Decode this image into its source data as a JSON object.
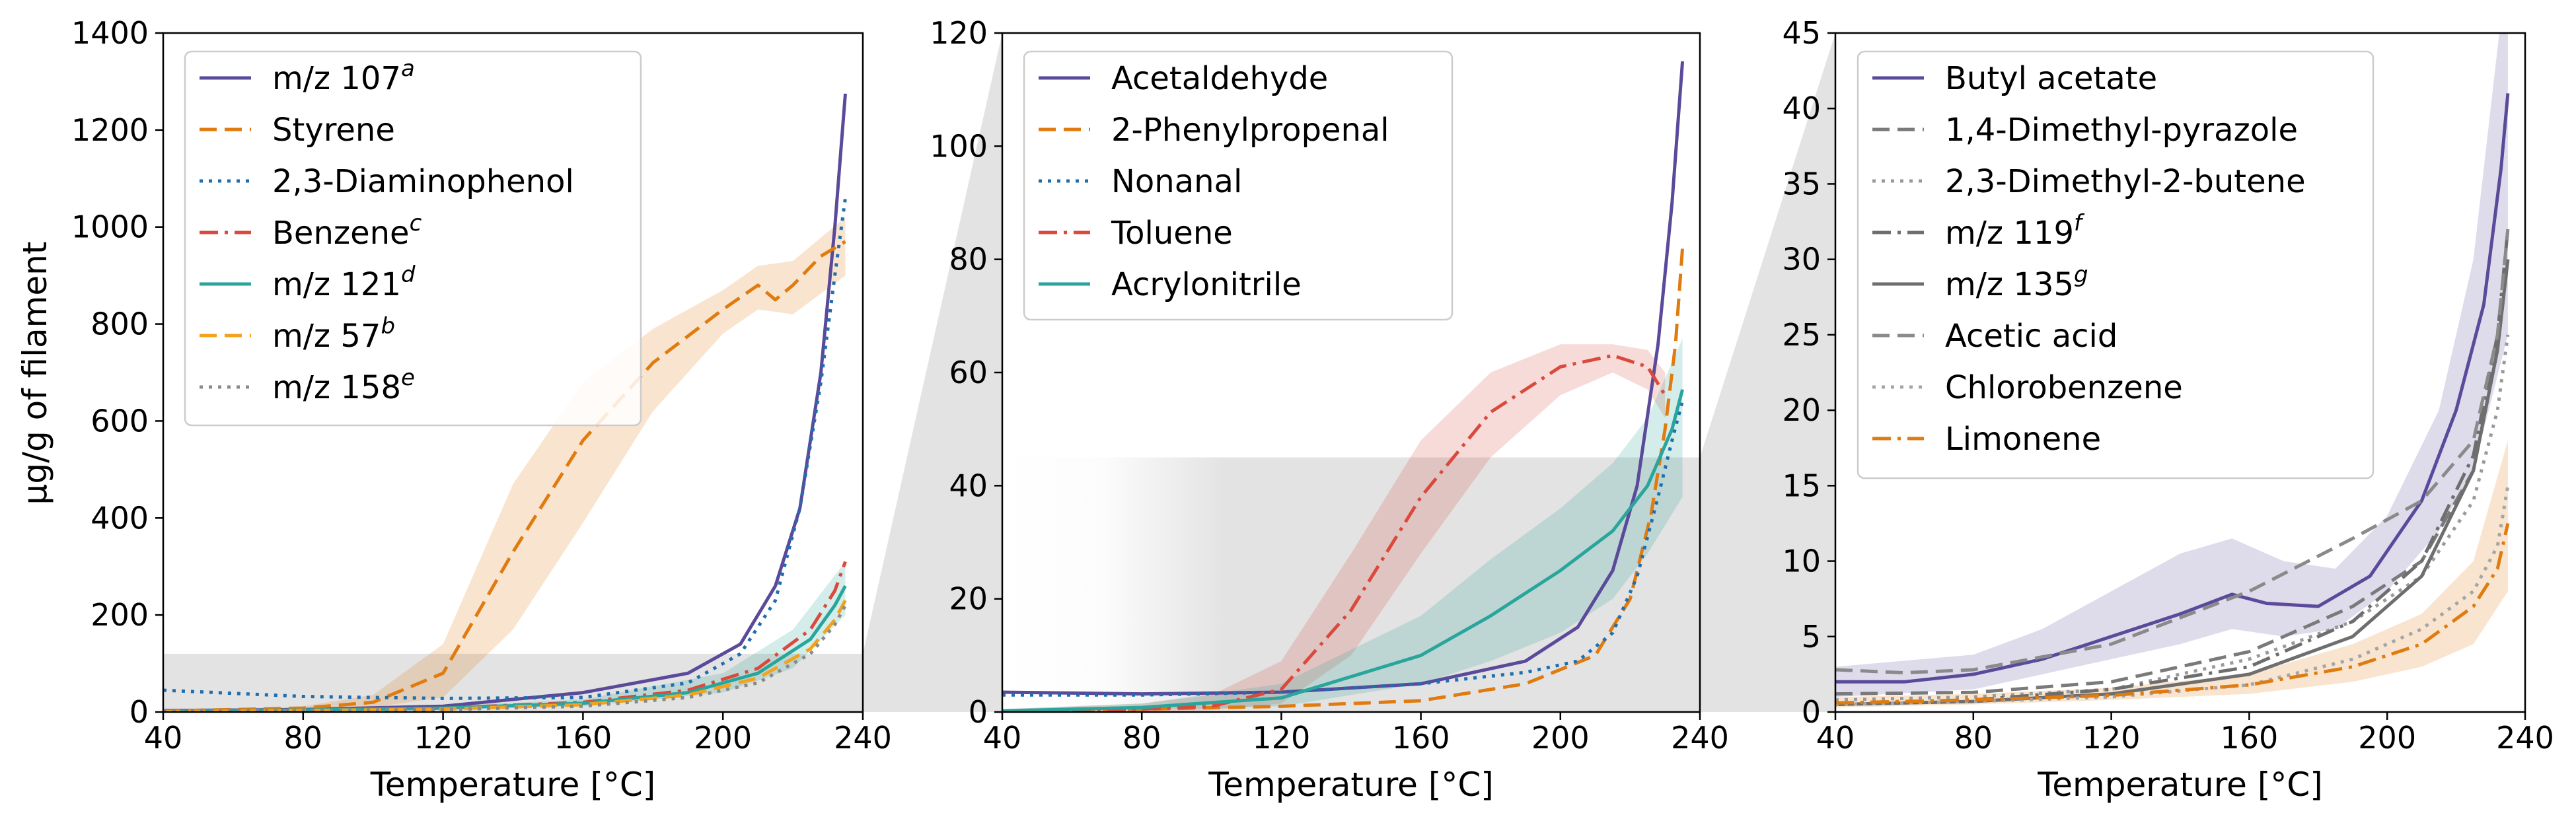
{
  "figure": {
    "ylabel": "µg/g of filament"
  },
  "chart_data": [
    {
      "type": "line",
      "xlabel": "Temperature [°C]",
      "ylabel": "µg/g of filament",
      "xlim": [
        40,
        240
      ],
      "ylim": [
        0,
        1400
      ],
      "xticks": [
        40,
        80,
        120,
        160,
        200,
        240
      ],
      "yticks": [
        0,
        200,
        400,
        600,
        800,
        1000,
        1200,
        1400
      ],
      "zoom_box_ymax": 120,
      "series": [
        {
          "name": "m/z 107",
          "sup": "a",
          "color": "#5b4a9a",
          "dash": "solid",
          "x": [
            40,
            80,
            120,
            160,
            190,
            205,
            215,
            222,
            228,
            232,
            235
          ],
          "y": [
            3,
            5,
            12,
            40,
            80,
            140,
            260,
            420,
            700,
            1000,
            1275
          ]
        },
        {
          "name": "Styrene",
          "color": "#e07b10",
          "dash": "dashed",
          "x": [
            40,
            80,
            100,
            120,
            140,
            160,
            180,
            200,
            210,
            215,
            220,
            228,
            235
          ],
          "y": [
            2,
            8,
            20,
            80,
            330,
            560,
            720,
            830,
            880,
            850,
            880,
            940,
            970
          ],
          "band": [
            [
              40,
              2,
              2
            ],
            [
              80,
              4,
              12
            ],
            [
              100,
              10,
              35
            ],
            [
              120,
              30,
              140
            ],
            [
              140,
              170,
              470
            ],
            [
              160,
              390,
              680
            ],
            [
              180,
              620,
              790
            ],
            [
              200,
              780,
              870
            ],
            [
              210,
              830,
              920
            ],
            [
              220,
              820,
              930
            ],
            [
              235,
              900,
              1020
            ]
          ]
        },
        {
          "name": "2,3-Diaminophenol",
          "color": "#1f6fb0",
          "dash": "dotted",
          "x": [
            40,
            80,
            120,
            160,
            190,
            205,
            215,
            222,
            228,
            232,
            235
          ],
          "y": [
            45,
            32,
            28,
            30,
            60,
            120,
            230,
            420,
            680,
            900,
            1060
          ]
        },
        {
          "name": "Benzene",
          "sup": "c",
          "color": "#d94a3d",
          "dash": "dashdot",
          "x": [
            40,
            80,
            120,
            160,
            190,
            210,
            225,
            232,
            235
          ],
          "y": [
            2,
            4,
            8,
            20,
            45,
            90,
            170,
            250,
            310
          ]
        },
        {
          "name": "m/z 121",
          "sup": "d",
          "color": "#2aa59c",
          "dash": "solid",
          "x": [
            40,
            80,
            120,
            160,
            190,
            210,
            225,
            232,
            235
          ],
          "y": [
            2,
            4,
            8,
            18,
            40,
            80,
            150,
            220,
            260
          ],
          "band": [
            [
              40,
              1,
              3
            ],
            [
              120,
              5,
              12
            ],
            [
              160,
              12,
              26
            ],
            [
              200,
              40,
              80
            ],
            [
              220,
              90,
              170
            ],
            [
              235,
              200,
              310
            ]
          ]
        },
        {
          "name": "m/z 57",
          "sup": "b",
          "color": "#f2a31b",
          "dash": "dashed",
          "x": [
            40,
            80,
            120,
            160,
            190,
            210,
            225,
            232,
            235
          ],
          "y": [
            1,
            3,
            6,
            15,
            35,
            70,
            130,
            190,
            230
          ]
        },
        {
          "name": "m/z 158",
          "sup": "e",
          "color": "#8a8a8a",
          "dash": "dotted",
          "x": [
            40,
            80,
            120,
            160,
            190,
            210,
            225,
            232,
            235
          ],
          "y": [
            1,
            3,
            5,
            12,
            30,
            60,
            120,
            180,
            220
          ]
        }
      ]
    },
    {
      "type": "line",
      "xlabel": "Temperature [°C]",
      "xlim": [
        40,
        240
      ],
      "ylim": [
        0,
        120
      ],
      "xticks": [
        40,
        80,
        120,
        160,
        200,
        240
      ],
      "yticks": [
        0,
        20,
        40,
        60,
        80,
        100,
        120
      ],
      "zoom_box_ymax": 45,
      "series": [
        {
          "name": "Acetaldehyde",
          "color": "#5b4a9a",
          "dash": "solid",
          "x": [
            40,
            80,
            120,
            160,
            190,
            205,
            215,
            222,
            228,
            232,
            235
          ],
          "y": [
            3.5,
            3.2,
            3.5,
            5,
            9,
            15,
            25,
            40,
            65,
            90,
            115
          ]
        },
        {
          "name": "2-Phenylpropenal",
          "color": "#e07b10",
          "dash": "dashed",
          "x": [
            40,
            80,
            120,
            160,
            190,
            210,
            220,
            226,
            230,
            233,
            235
          ],
          "y": [
            0,
            0.5,
            1,
            2,
            5,
            10,
            20,
            35,
            50,
            65,
            82
          ]
        },
        {
          "name": "Nonanal",
          "color": "#1f6fb0",
          "dash": "dotted",
          "x": [
            40,
            80,
            120,
            160,
            190,
            205,
            215,
            222,
            228,
            232,
            235
          ],
          "y": [
            3,
            3,
            3.5,
            5,
            7,
            9,
            14,
            24,
            38,
            48,
            55
          ]
        },
        {
          "name": "Toluene",
          "color": "#d94a3d",
          "dash": "dashdot",
          "x": [
            40,
            80,
            100,
            120,
            140,
            160,
            180,
            200,
            215,
            225,
            230
          ],
          "y": [
            0,
            0.5,
            1,
            4,
            18,
            38,
            53,
            61,
            63,
            61,
            56
          ],
          "band": [
            [
              40,
              0,
              0.5
            ],
            [
              80,
              0,
              1.5
            ],
            [
              100,
              0.3,
              3
            ],
            [
              120,
              1.5,
              9
            ],
            [
              140,
              10,
              28
            ],
            [
              160,
              28,
              48
            ],
            [
              180,
              45,
              60
            ],
            [
              200,
              56,
              65
            ],
            [
              215,
              60,
              65
            ],
            [
              225,
              57,
              64
            ],
            [
              230,
              52,
              60
            ]
          ]
        },
        {
          "name": "Acrylonitrile",
          "color": "#2aa59c",
          "dash": "solid",
          "x": [
            40,
            80,
            120,
            160,
            180,
            200,
            215,
            225,
            232,
            235
          ],
          "y": [
            0.2,
            0.8,
            2.5,
            10,
            17,
            25,
            32,
            40,
            50,
            57
          ],
          "band": [
            [
              40,
              0,
              0.5
            ],
            [
              80,
              0.3,
              1.5
            ],
            [
              120,
              1,
              5
            ],
            [
              160,
              5,
              17
            ],
            [
              180,
              9,
              27
            ],
            [
              200,
              14,
              36
            ],
            [
              215,
              20,
              44
            ],
            [
              225,
              28,
              52
            ],
            [
              235,
              38,
              66
            ]
          ]
        }
      ]
    },
    {
      "type": "line",
      "xlabel": "Temperature [°C]",
      "xlim": [
        40,
        240
      ],
      "ylim": [
        0,
        45
      ],
      "xticks": [
        40,
        80,
        120,
        160,
        200,
        240
      ],
      "yticks": [
        0,
        5,
        10,
        15,
        20,
        25,
        30,
        35,
        40,
        45
      ],
      "series": [
        {
          "name": "Butyl acetate",
          "color": "#5b4a9a",
          "dash": "solid",
          "x": [
            40,
            60,
            80,
            100,
            120,
            140,
            155,
            165,
            180,
            195,
            210,
            220,
            228,
            233,
            235
          ],
          "y": [
            2,
            2,
            2.5,
            3.5,
            5,
            6.5,
            7.8,
            7.2,
            7,
            9,
            14,
            20,
            27,
            36,
            41
          ],
          "band": [
            [
              40,
              1,
              3
            ],
            [
              80,
              1.5,
              3.8
            ],
            [
              100,
              2.5,
              5.5
            ],
            [
              120,
              3.5,
              8
            ],
            [
              140,
              4.5,
              10.5
            ],
            [
              155,
              5.5,
              11.5
            ],
            [
              170,
              5,
              10
            ],
            [
              185,
              5.5,
              9.5
            ],
            [
              200,
              8,
              13
            ],
            [
              215,
              12,
              20
            ],
            [
              225,
              16,
              30
            ],
            [
              235,
              25,
              50
            ]
          ]
        },
        {
          "name": "1,4-Dimethyl-pyrazole",
          "color": "#7a7a7a",
          "dash": "dashed",
          "x": [
            40,
            80,
            120,
            160,
            190,
            210,
            225,
            232,
            235
          ],
          "y": [
            1.2,
            1.3,
            2,
            4,
            7,
            10,
            16,
            24,
            30
          ]
        },
        {
          "name": "2,3-Dimethyl-2-butene",
          "color": "#9a9a9a",
          "dash": "dotted",
          "x": [
            40,
            80,
            120,
            160,
            190,
            210,
            225,
            232,
            235
          ],
          "y": [
            0.8,
            1,
            1.5,
            3.5,
            6,
            9,
            14,
            20,
            25
          ]
        },
        {
          "name": "m/z 119",
          "sup": "f",
          "color": "#6e6e6e",
          "dash": "dashdot",
          "x": [
            40,
            80,
            120,
            160,
            190,
            210,
            225,
            232,
            235
          ],
          "y": [
            0.5,
            0.8,
            1.5,
            3,
            6,
            10,
            17,
            25,
            32
          ]
        },
        {
          "name": "m/z 135",
          "sup": "g",
          "color": "#6e6e6e",
          "dash": "solid",
          "x": [
            40,
            80,
            120,
            160,
            190,
            210,
            225,
            232,
            235
          ],
          "y": [
            0.5,
            0.7,
            1.2,
            2.5,
            5,
            9,
            16,
            24,
            30
          ]
        },
        {
          "name": "Acetic acid",
          "color": "#8a8a8a",
          "dash": "dashed",
          "x": [
            40,
            60,
            80,
            120,
            160,
            190,
            210,
            225,
            232,
            235
          ],
          "y": [
            2.8,
            2.6,
            2.8,
            4.5,
            8,
            11.5,
            14,
            18,
            25,
            32
          ]
        },
        {
          "name": "Chlorobenzene",
          "color": "#a5a5a5",
          "dash": "dotted",
          "x": [
            40,
            80,
            120,
            160,
            190,
            210,
            225,
            232,
            235
          ],
          "y": [
            0.5,
            0.7,
            1,
            1.8,
            3.5,
            5.5,
            8,
            11,
            15
          ]
        },
        {
          "name": "Limonene",
          "color": "#e07b10",
          "dash": "dashdot",
          "x": [
            40,
            80,
            120,
            160,
            190,
            210,
            225,
            232,
            235
          ],
          "y": [
            0.6,
            0.8,
            1.1,
            1.8,
            3,
            4.5,
            7,
            9.5,
            12.5
          ],
          "band": [
            [
              40,
              0.3,
              1
            ],
            [
              80,
              0.5,
              1.2
            ],
            [
              120,
              0.8,
              1.6
            ],
            [
              160,
              1.2,
              2.5
            ],
            [
              190,
              2,
              4.5
            ],
            [
              210,
              3,
              6.5
            ],
            [
              225,
              4.5,
              10
            ],
            [
              235,
              8,
              18
            ]
          ]
        }
      ]
    }
  ]
}
